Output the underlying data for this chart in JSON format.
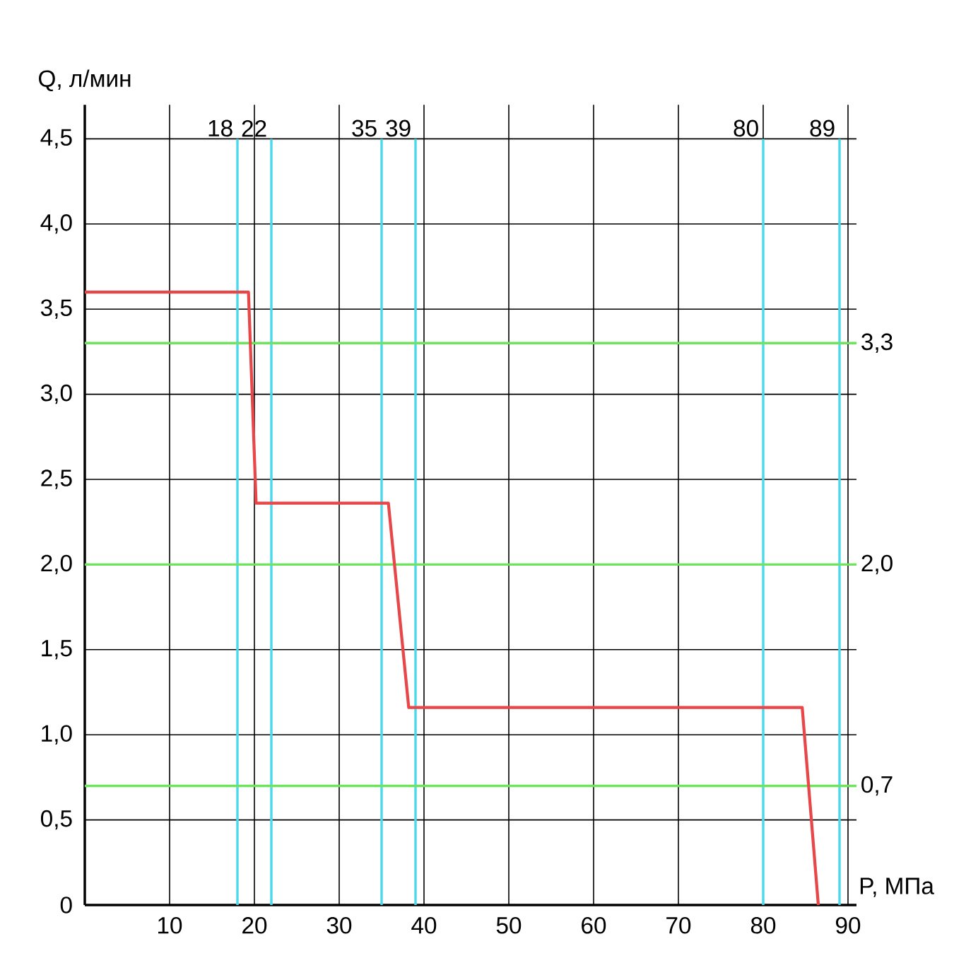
{
  "chart_data": {
    "type": "line",
    "xlabel": "P, МПа",
    "ylabel": "Q, л/мин",
    "xlim": [
      0,
      91
    ],
    "ylim": [
      0,
      4.7
    ],
    "xticks": [
      10,
      20,
      30,
      40,
      50,
      60,
      70,
      80,
      90
    ],
    "yticks": [
      0,
      {
        "value": 0.5,
        "label": "0,5"
      },
      {
        "value": 1,
        "label": "1,0"
      },
      {
        "value": 1.5,
        "label": "1,5"
      },
      {
        "value": 2,
        "label": "2,0"
      },
      {
        "value": 2.5,
        "label": "2,5"
      },
      {
        "value": 3,
        "label": "3,0"
      },
      {
        "value": 3.5,
        "label": "3,5"
      },
      {
        "value": 4,
        "label": "4,0"
      },
      {
        "value": 4.5,
        "label": "4,5"
      }
    ],
    "grid": true,
    "series": [
      {
        "color": "#e8474a",
        "x": [
          0,
          19.3,
          20.2,
          35.8,
          38.2,
          84.6,
          86.5
        ],
        "values": [
          3.6,
          3.6,
          2.36,
          2.36,
          1.16,
          1.16,
          0
        ]
      }
    ],
    "ref_lines": [
      {
        "axis": "x",
        "value": 18,
        "label": "18",
        "color": "#4fd8ea"
      },
      {
        "axis": "x",
        "value": 22,
        "label": "22",
        "color": "#4fd8ea"
      },
      {
        "axis": "x",
        "value": 35,
        "label": "35",
        "color": "#4fd8ea"
      },
      {
        "axis": "x",
        "value": 39,
        "label": "39",
        "color": "#4fd8ea"
      },
      {
        "axis": "x",
        "value": 80,
        "label": "80",
        "color": "#4fd8ea"
      },
      {
        "axis": "x",
        "value": 89,
        "label": "89",
        "color": "#4fd8ea"
      },
      {
        "axis": "y",
        "value": 3.3,
        "label": "3,3",
        "color": "#6ee35e"
      },
      {
        "axis": "y",
        "value": 2.0,
        "label": "2,0",
        "color": "#6ee35e"
      },
      {
        "axis": "y",
        "value": 0.7,
        "label": "0,7",
        "color": "#6ee35e"
      }
    ]
  }
}
